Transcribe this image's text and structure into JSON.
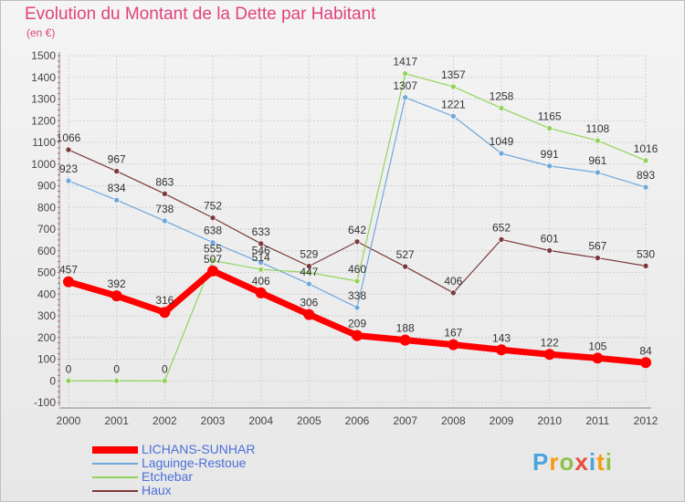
{
  "title": "Evolution du Montant de la Dette par Habitant",
  "subtitle": "(en €)",
  "brand": {
    "letters": [
      "P",
      "r",
      "o",
      "x",
      "i",
      "t",
      "i"
    ],
    "colors": [
      "#4aa3df",
      "#f39c12",
      "#8bc34a",
      "#e74c3c",
      "#4aa3df",
      "#f39c12",
      "#8bc34a"
    ]
  },
  "chart_data": {
    "type": "line",
    "x": [
      "2000",
      "2001",
      "2002",
      "2003",
      "2004",
      "2005",
      "2006",
      "2007",
      "2008",
      "2009",
      "2010",
      "2011",
      "2012"
    ],
    "ylim": [
      -100,
      1500
    ],
    "yticks": [
      "-100",
      "0",
      "100",
      "200",
      "300",
      "400",
      "500",
      "600",
      "700",
      "800",
      "900",
      "1000",
      "1100",
      "1200",
      "1300",
      "1400",
      "1500"
    ],
    "grid": true,
    "legend_position": "bottom-left",
    "series": [
      {
        "name": "LICHANS-SUNHAR",
        "color": "#ff0000",
        "values": [
          457,
          392,
          316,
          507,
          406,
          306,
          209,
          188,
          167,
          143,
          122,
          105,
          84
        ],
        "labels": [
          "457",
          "392",
          "316",
          "507",
          "406",
          "306",
          "209",
          "188",
          "167",
          "143",
          "122",
          "105",
          "84"
        ]
      },
      {
        "name": "Laguinge-Restoue",
        "color": "#6fa8dc",
        "values": [
          923,
          834,
          738,
          638,
          546,
          447,
          338,
          1307,
          1221,
          1049,
          991,
          961,
          893
        ],
        "labels": [
          "923",
          "834",
          "738",
          "638",
          "546",
          "447",
          "338",
          "1307",
          "1221",
          "1049",
          "991",
          "961",
          "893"
        ]
      },
      {
        "name": "Etchebar",
        "color": "#93d35c",
        "values": [
          0,
          0,
          0,
          555,
          514,
          500,
          460,
          1417,
          1357,
          1258,
          1165,
          1108,
          1016
        ],
        "labels": [
          "0",
          "0",
          "0",
          "555",
          "514",
          "",
          "460",
          "1417",
          "1357",
          "1258",
          "1165",
          "1108",
          "1016"
        ]
      },
      {
        "name": "Haux",
        "color": "#7a3a3a",
        "values": [
          1066,
          967,
          863,
          752,
          633,
          529,
          642,
          527,
          406,
          652,
          601,
          567,
          530
        ],
        "labels": [
          "1066",
          "967",
          "863",
          "752",
          "633",
          "529",
          "642",
          "527",
          "406",
          "652",
          "601",
          "567",
          "530"
        ]
      }
    ]
  }
}
